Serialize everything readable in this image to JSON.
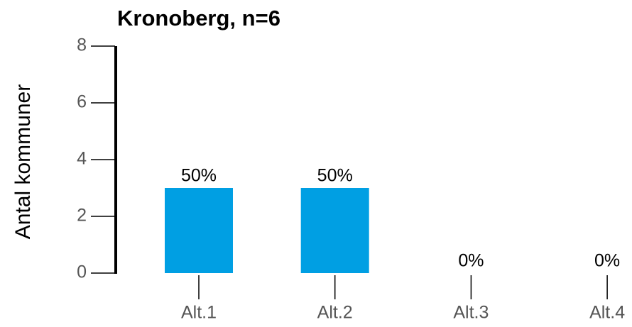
{
  "chart_data": {
    "type": "bar",
    "title": "Kronoberg, n=6",
    "y_label": "Antal kommuner",
    "categories": [
      "Alt.1",
      "Alt.2",
      "Alt.3",
      "Alt.4"
    ],
    "values": [
      3,
      3,
      0,
      0
    ],
    "value_labels": [
      "50%",
      "50%",
      "0%",
      "0%"
    ],
    "color": "#009fe3",
    "ylim": [
      0,
      8
    ],
    "yticks": [
      0,
      2,
      4,
      6,
      8
    ],
    "grid": false
  }
}
